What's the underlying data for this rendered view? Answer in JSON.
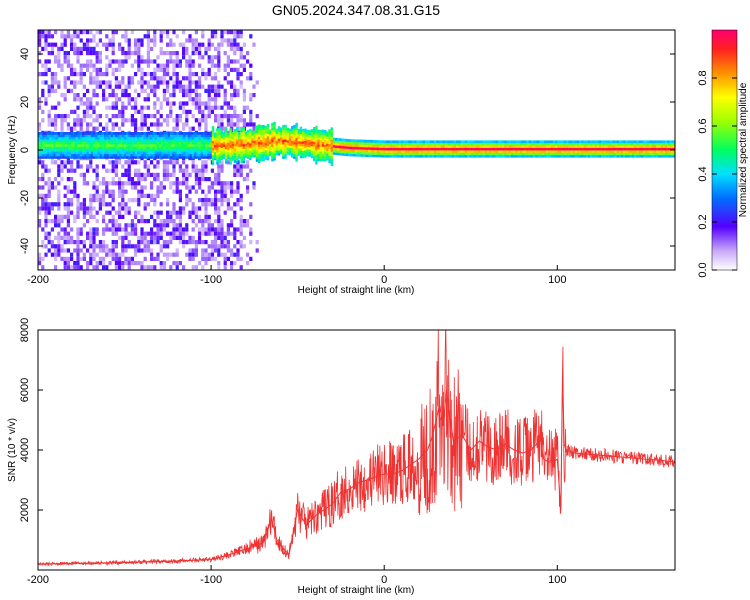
{
  "chart_data": [
    {
      "type": "heatmap",
      "title": "GN05.2024.347.08.31.G15",
      "xlabel": "Height of straight line (km)",
      "ylabel": "Frequency (Hz)",
      "xlim": [
        -200,
        168
      ],
      "ylim": [
        -50,
        50
      ],
      "x_ticks": [
        -200,
        -100,
        0,
        100
      ],
      "y_ticks": [
        -40,
        -20,
        0,
        20,
        40
      ],
      "ridge": {
        "x": [
          -200,
          -150,
          -110,
          -90,
          -75,
          -60,
          -45,
          -35,
          -20,
          0,
          50,
          100,
          168
        ],
        "y": [
          2,
          2,
          2,
          2,
          3,
          4,
          3,
          2,
          1,
          0.5,
          0.5,
          0.5,
          0.5
        ]
      },
      "noise_extent_km": [
        -200,
        -85
      ],
      "colorbar": {
        "label": "Normalized spectral amplitude",
        "range": [
          0,
          1
        ],
        "ticks": [
          0.0,
          0.2,
          0.4,
          0.6,
          0.8
        ]
      }
    },
    {
      "type": "line",
      "xlabel": "Height of straight line (km)",
      "ylabel": "SNR (10 * v/v)",
      "xlim": [
        -200,
        168
      ],
      "ylim": [
        0,
        8000
      ],
      "x_ticks": [
        -200,
        -100,
        0,
        100
      ],
      "y_ticks": [
        2000,
        4000,
        6000,
        8000
      ],
      "color": "#ee3333",
      "series": [
        {
          "x": [
            -200,
            -150,
            -120,
            -100,
            -90,
            -80,
            -70,
            -65,
            -62,
            -58,
            -55,
            -50,
            -45,
            -40,
            -35,
            -30,
            -25,
            -20,
            -15,
            -10,
            -5,
            0,
            5,
            10,
            15,
            20,
            25,
            28,
            30,
            32,
            34,
            36,
            40,
            45,
            50,
            55,
            60,
            65,
            70,
            75,
            80,
            85,
            88,
            90,
            92,
            95,
            98,
            100,
            102,
            103,
            104,
            105,
            110,
            120,
            130,
            140,
            150,
            160,
            168
          ],
          "y": [
            200,
            250,
            300,
            350,
            500,
            700,
            900,
            1700,
            1000,
            700,
            500,
            2000,
            1500,
            1800,
            2000,
            2200,
            2600,
            2700,
            2900,
            3000,
            3100,
            3200,
            3200,
            3300,
            3500,
            3700,
            4000,
            4500,
            5000,
            5500,
            4800,
            6000,
            4300,
            4500,
            4000,
            4300,
            4100,
            4000,
            4200,
            4000,
            3900,
            4000,
            4200,
            4500,
            3700,
            3600,
            3600,
            3700,
            2000,
            6500,
            4200,
            4000,
            3900,
            3850,
            3800,
            3750,
            3700,
            3650,
            3600
          ]
        }
      ]
    }
  ]
}
